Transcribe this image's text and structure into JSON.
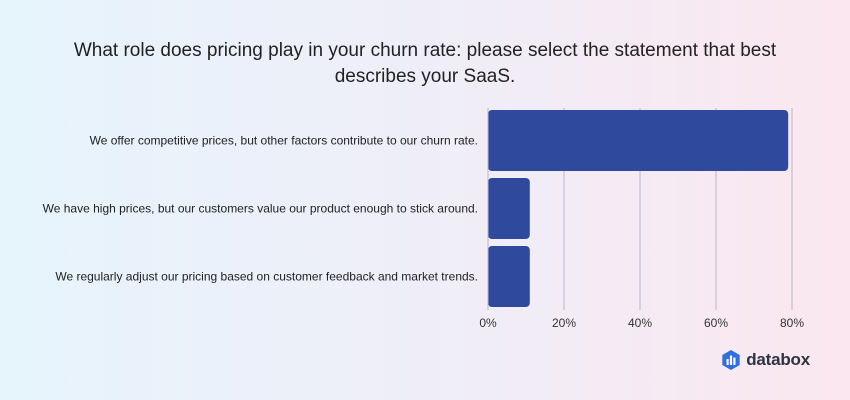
{
  "title_line1": "What role does pricing play in your churn rate: please select the statement that best",
  "title_line2": "describes your SaaS.",
  "brand": "databox",
  "colors": {
    "bar": "#2f4a9d",
    "grid": "#b9b7c3"
  },
  "chart_data": {
    "type": "bar",
    "orientation": "horizontal",
    "categories": [
      "We offer competitive prices, but other factors contribute to our churn rate.",
      "We have high prices, but our customers value our product enough to stick around.",
      "We regularly adjust our pricing based on customer feedback and market trends."
    ],
    "values": [
      79,
      11,
      11
    ],
    "xlim": [
      0,
      80
    ],
    "xticks": [
      0,
      20,
      40,
      60,
      80
    ],
    "xtick_labels": [
      "0%",
      "20%",
      "40%",
      "60%",
      "80%"
    ],
    "grid": true
  }
}
